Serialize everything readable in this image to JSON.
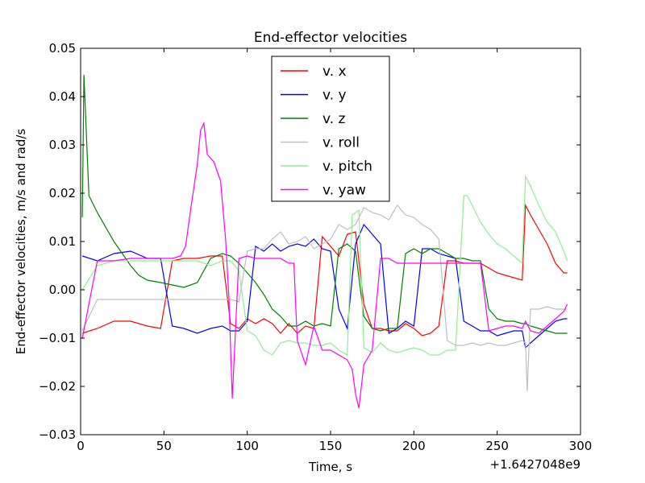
{
  "chart_data": {
    "type": "line",
    "title": "End-effector velocities",
    "xlabel": "Time, s",
    "ylabel": "End-effector velocities, m/s and rad/s",
    "x_offset_label": "+1.6427048e9",
    "xlim": [
      0,
      300
    ],
    "ylim": [
      -0.03,
      0.05
    ],
    "x_ticks": [
      0,
      50,
      100,
      150,
      200,
      250,
      300
    ],
    "x_tick_labels": [
      "0",
      "50",
      "100",
      "150",
      "200",
      "250",
      "300"
    ],
    "y_ticks": [
      -0.03,
      -0.02,
      -0.01,
      0.0,
      0.01,
      0.02,
      0.03,
      0.04,
      0.05
    ],
    "y_tick_labels": [
      "−0.03",
      "−0.02",
      "−0.01",
      "0.00",
      "0.01",
      "0.02",
      "0.03",
      "0.04",
      "0.05"
    ],
    "grid": false,
    "legend_position": "top-center",
    "series": [
      {
        "name": "v. x",
        "color": "#ff0000",
        "x": [
          1,
          10,
          20,
          30,
          40,
          48,
          55,
          62,
          70,
          78,
          85,
          90,
          95,
          100,
          105,
          110,
          115,
          120,
          125,
          130,
          135,
          140,
          145,
          150,
          155,
          160,
          165,
          170,
          175,
          180,
          185,
          190,
          195,
          200,
          205,
          210,
          215,
          220,
          225,
          230,
          235,
          240,
          245,
          250,
          255,
          260,
          265,
          267,
          270,
          275,
          280,
          285,
          290,
          292
        ],
        "y": [
          -0.009,
          -0.008,
          -0.0065,
          -0.0065,
          -0.0075,
          -0.008,
          0.006,
          0.0065,
          0.0065,
          0.007,
          0.007,
          -0.007,
          -0.008,
          -0.006,
          -0.007,
          -0.006,
          -0.007,
          -0.009,
          -0.007,
          -0.009,
          -0.0075,
          -0.008,
          0.011,
          0.009,
          0.007,
          0.0115,
          0.012,
          -0.003,
          -0.008,
          -0.008,
          -0.0085,
          -0.0085,
          -0.007,
          -0.008,
          -0.0095,
          -0.009,
          -0.0075,
          0.006,
          0.006,
          0.0055,
          0.0055,
          0.0055,
          0.0045,
          0.0035,
          0.003,
          0.0025,
          0.002,
          0.0175,
          0.0155,
          0.0125,
          0.0095,
          0.0055,
          0.0035,
          0.0035
        ]
      },
      {
        "name": "v. y",
        "color": "#0000ff",
        "x": [
          1,
          10,
          20,
          30,
          40,
          48,
          55,
          62,
          70,
          78,
          85,
          90,
          95,
          100,
          105,
          110,
          115,
          120,
          125,
          130,
          135,
          140,
          145,
          150,
          155,
          160,
          165,
          170,
          175,
          180,
          185,
          190,
          195,
          200,
          205,
          210,
          215,
          220,
          225,
          230,
          235,
          240,
          245,
          250,
          255,
          260,
          265,
          267,
          270,
          275,
          280,
          285,
          290,
          292
        ],
        "y": [
          0.007,
          0.006,
          0.0075,
          0.008,
          0.0065,
          0.0065,
          -0.0075,
          -0.008,
          -0.009,
          -0.008,
          -0.0075,
          -0.0085,
          -0.0085,
          -0.0065,
          0.009,
          0.008,
          0.0095,
          0.008,
          0.009,
          0.0095,
          0.009,
          0.0105,
          0.0085,
          0.008,
          -0.004,
          -0.008,
          0.0095,
          0.0135,
          0.0115,
          0.0095,
          -0.009,
          -0.008,
          -0.0065,
          -0.0075,
          0.0085,
          0.0085,
          0.0075,
          0.007,
          0.0065,
          -0.0065,
          -0.0075,
          -0.0085,
          -0.0085,
          -0.0095,
          -0.009,
          -0.0085,
          -0.0085,
          -0.012,
          -0.011,
          -0.0095,
          -0.008,
          -0.0065,
          -0.006,
          -0.006
        ]
      },
      {
        "name": "v. z",
        "color": "#007f00",
        "x": [
          1,
          2,
          5,
          10,
          15,
          20,
          25,
          30,
          35,
          40,
          48,
          55,
          62,
          70,
          78,
          85,
          90,
          95,
          100,
          105,
          110,
          115,
          120,
          125,
          130,
          135,
          140,
          145,
          150,
          155,
          160,
          165,
          170,
          175,
          180,
          185,
          190,
          195,
          200,
          205,
          210,
          215,
          220,
          225,
          230,
          235,
          240,
          245,
          250,
          255,
          260,
          265,
          267,
          270,
          275,
          280,
          285,
          290,
          292
        ],
        "y": [
          0.015,
          0.0445,
          0.0195,
          0.016,
          0.013,
          0.01,
          0.0075,
          0.005,
          0.003,
          0.002,
          0.0015,
          0.001,
          0.0005,
          0.0015,
          0.0065,
          0.0075,
          0.007,
          0.0055,
          0.0035,
          0.0015,
          -0.001,
          -0.004,
          -0.0055,
          -0.0075,
          -0.0075,
          -0.0065,
          -0.0075,
          -0.007,
          -0.0075,
          0.0085,
          0.0095,
          0.008,
          -0.0055,
          -0.008,
          -0.0085,
          -0.008,
          -0.008,
          0.0075,
          0.0085,
          0.0075,
          0.0085,
          0.0085,
          0.0075,
          0.0065,
          0.0065,
          0.006,
          0.006,
          -0.004,
          -0.006,
          -0.0065,
          -0.0065,
          -0.007,
          -0.007,
          -0.0075,
          -0.008,
          -0.0085,
          -0.009,
          -0.009,
          -0.009
        ]
      },
      {
        "name": "v. roll",
        "color": "#bfbfbf",
        "x": [
          1,
          10,
          20,
          30,
          40,
          48,
          55,
          62,
          70,
          78,
          85,
          90,
          95,
          100,
          105,
          110,
          115,
          120,
          125,
          130,
          135,
          140,
          145,
          150,
          155,
          160,
          165,
          170,
          175,
          180,
          185,
          190,
          195,
          200,
          205,
          210,
          215,
          220,
          225,
          230,
          235,
          240,
          245,
          250,
          255,
          260,
          265,
          267,
          268,
          270,
          275,
          280,
          285,
          290,
          292
        ],
        "y": [
          -0.0085,
          -0.002,
          -0.002,
          -0.002,
          -0.002,
          -0.002,
          -0.002,
          -0.002,
          -0.002,
          -0.002,
          -0.002,
          -0.002,
          -0.0025,
          0.008,
          0.0085,
          0.0085,
          0.0105,
          0.012,
          0.0095,
          0.01,
          0.011,
          0.0085,
          0.0095,
          0.0105,
          0.0135,
          0.0125,
          0.0135,
          0.017,
          0.016,
          0.0155,
          0.0145,
          0.0175,
          0.0155,
          0.015,
          0.0135,
          0.0125,
          0.0105,
          -0.0105,
          -0.0115,
          -0.0115,
          -0.011,
          -0.0115,
          -0.011,
          -0.0115,
          -0.0115,
          -0.011,
          -0.0105,
          -0.011,
          -0.021,
          -0.004,
          -0.004,
          -0.0035,
          -0.004,
          -0.004,
          -0.004
        ]
      },
      {
        "name": "v. pitch",
        "color": "#90ee90",
        "x": [
          1,
          10,
          20,
          30,
          40,
          48,
          55,
          62,
          70,
          78,
          85,
          90,
          95,
          100,
          105,
          110,
          115,
          120,
          125,
          130,
          135,
          140,
          145,
          150,
          155,
          160,
          163,
          167,
          170,
          175,
          180,
          185,
          190,
          195,
          200,
          205,
          210,
          215,
          220,
          225,
          230,
          232,
          235,
          240,
          245,
          250,
          255,
          260,
          265,
          267,
          270,
          275,
          280,
          285,
          290,
          292
        ],
        "y": [
          0.0,
          0.005,
          0.006,
          0.006,
          0.006,
          0.006,
          0.006,
          0.006,
          0.006,
          0.005,
          0.006,
          0.006,
          0.004,
          -0.0085,
          -0.0095,
          -0.0125,
          -0.0135,
          -0.011,
          -0.0105,
          -0.011,
          -0.011,
          -0.0115,
          -0.0115,
          -0.011,
          -0.0125,
          -0.0135,
          0.0155,
          0.0165,
          -0.012,
          -0.013,
          -0.011,
          -0.0125,
          -0.013,
          -0.0125,
          -0.012,
          -0.0125,
          -0.0135,
          -0.0135,
          -0.0125,
          -0.0125,
          0.0195,
          0.0195,
          0.0175,
          0.014,
          0.0115,
          0.0095,
          0.0085,
          0.007,
          0.0055,
          0.0235,
          0.0215,
          0.0175,
          0.014,
          0.012,
          0.008,
          0.006
        ]
      },
      {
        "name": "v. yaw",
        "color": "#ff00ff",
        "x": [
          1,
          10,
          20,
          30,
          40,
          48,
          55,
          60,
          63,
          66,
          70,
          72,
          74,
          76,
          80,
          84,
          87,
          89,
          91,
          95,
          100,
          105,
          110,
          115,
          120,
          125,
          128,
          130,
          135,
          140,
          145,
          150,
          155,
          160,
          163,
          165,
          167,
          170,
          175,
          180,
          185,
          190,
          195,
          200,
          205,
          210,
          215,
          220,
          225,
          230,
          235,
          240,
          245,
          250,
          255,
          260,
          265,
          267,
          270,
          275,
          280,
          285,
          290,
          292
        ],
        "y": [
          -0.01,
          0.006,
          0.006,
          0.0065,
          0.0065,
          0.0065,
          0.0065,
          0.007,
          0.009,
          0.0165,
          0.026,
          0.033,
          0.0345,
          0.028,
          0.0265,
          0.0225,
          0.0105,
          -0.0015,
          -0.0225,
          0.0065,
          0.007,
          0.0065,
          0.0065,
          0.0065,
          0.0065,
          0.0055,
          0.0055,
          -0.0105,
          -0.0155,
          -0.0075,
          -0.0125,
          -0.0125,
          -0.0135,
          -0.0145,
          -0.0165,
          -0.0215,
          -0.0245,
          -0.0155,
          -0.0125,
          0.0065,
          0.0065,
          0.0055,
          0.0055,
          0.0055,
          0.0055,
          0.0055,
          0.0055,
          0.0055,
          0.0055,
          0.0055,
          0.0055,
          0.0055,
          -0.0085,
          -0.008,
          -0.0075,
          -0.0075,
          -0.008,
          -0.0065,
          -0.0085,
          -0.009,
          -0.0075,
          -0.006,
          -0.0045,
          -0.003
        ]
      }
    ]
  }
}
